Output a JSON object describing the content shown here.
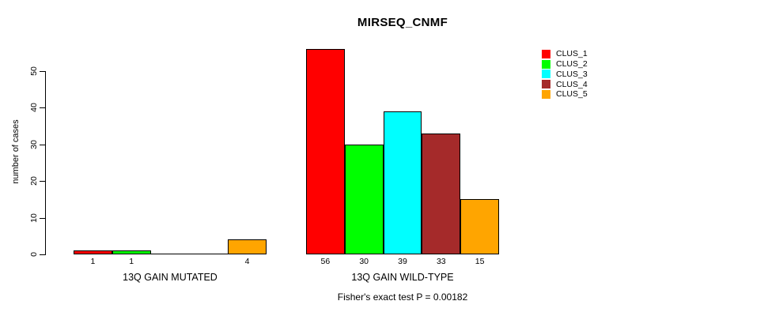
{
  "chart_data": {
    "type": "bar",
    "title": "MIRSEQ_CNMF",
    "ylabel": "number of cases",
    "xlabel": "",
    "yticks": [
      0,
      10,
      20,
      30,
      40,
      50
    ],
    "ylim": [
      0,
      58
    ],
    "categories": [
      "13Q GAIN MUTATED",
      "13Q GAIN WILD-TYPE"
    ],
    "series": [
      {
        "name": "CLUS_1",
        "color": "#FF0000",
        "values": [
          1,
          56
        ]
      },
      {
        "name": "CLUS_2",
        "color": "#00FF00",
        "values": [
          1,
          30
        ]
      },
      {
        "name": "CLUS_3",
        "color": "#00FFFF",
        "values": [
          0,
          39
        ]
      },
      {
        "name": "CLUS_4",
        "color": "#A52A2A",
        "values": [
          0,
          33
        ]
      },
      {
        "name": "CLUS_5",
        "color": "#FFA500",
        "values": [
          4,
          15
        ]
      }
    ],
    "bar_value_labels": {
      "13Q GAIN MUTATED": [
        "1",
        "1",
        "",
        "",
        "4"
      ],
      "13Q GAIN WILD-TYPE": [
        "56",
        "30",
        "39",
        "33",
        "15"
      ]
    },
    "annotation": "Fisher's exact test P = 0.00182",
    "legend": {
      "position": "top-right",
      "entries": [
        "CLUS_1",
        "CLUS_2",
        "CLUS_3",
        "CLUS_4",
        "CLUS_5"
      ]
    },
    "grid": false,
    "bar_border_color": "#000000",
    "axis_color": "#000000",
    "background": "#FFFFFF"
  }
}
